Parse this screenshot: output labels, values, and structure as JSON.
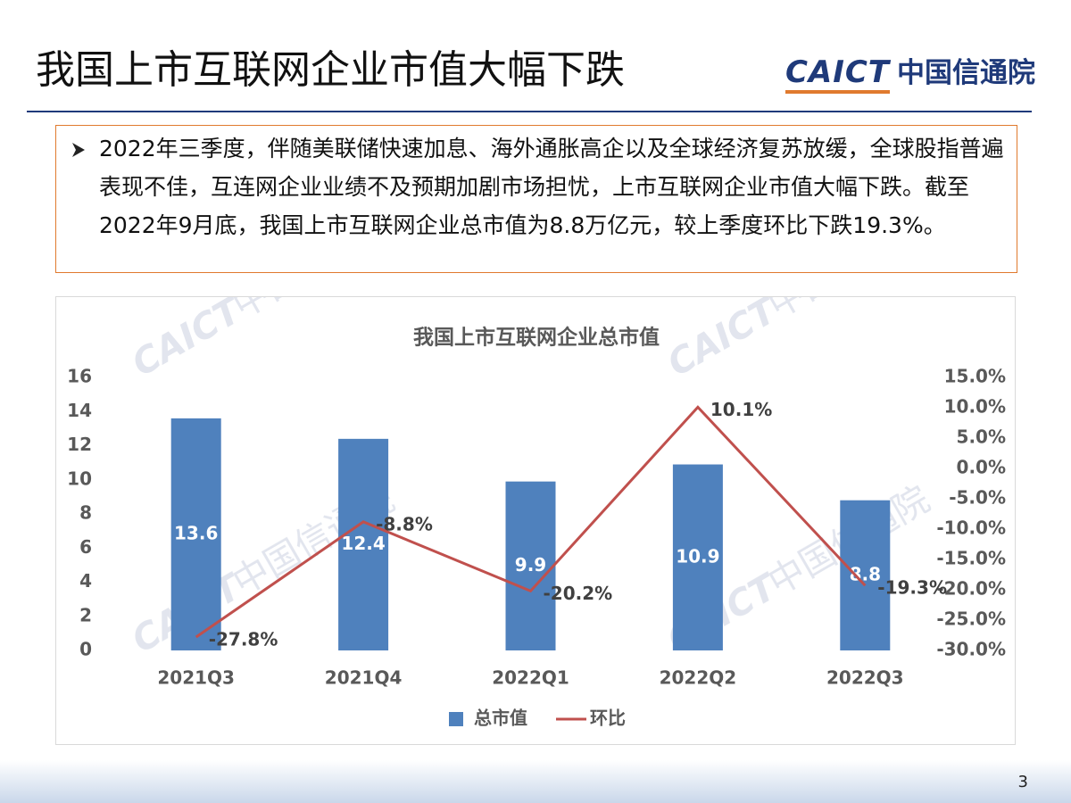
{
  "header": {
    "title": "我国上市互联网企业市值大幅下跌",
    "logo_latin": "CAICT",
    "logo_cn": "中国信通院"
  },
  "bullet": "2022年三季度，伴随美联储快速加息、海外通胀高企以及全球经济复苏放缓，全球股指普遍表现不佳，互连网企业业绩不及预期加剧市场担忧，上市互联网企业市值大幅下跌。截至2022年9月底，我国上市互联网企业总市值为8.8万亿元，较上季度环比下跌19.3%。",
  "chart_data": {
    "type": "bar",
    "title": "我国上市互联网企业总市值",
    "categories": [
      "2021Q3",
      "2021Q4",
      "2022Q1",
      "2022Q2",
      "2022Q3"
    ],
    "series": [
      {
        "name": "总市值",
        "type": "bar",
        "color": "#4f81bd",
        "values": [
          13.6,
          12.4,
          9.9,
          10.9,
          8.8
        ]
      },
      {
        "name": "环比",
        "type": "line",
        "axis": "y2",
        "color": "#c0504d",
        "values": [
          -27.8,
          -8.8,
          -20.2,
          10.1,
          -19.3
        ],
        "value_labels": [
          "-27.8%",
          "-8.8%",
          "-20.2%",
          "10.1%",
          "-19.3%"
        ]
      }
    ],
    "ylim": [
      0,
      16
    ],
    "yticks": [
      0,
      2,
      4,
      6,
      8,
      10,
      12,
      14,
      16
    ],
    "y2lim": [
      -30,
      15
    ],
    "y2ticks": [
      {
        "value": -30,
        "label": "-30.0%"
      },
      {
        "value": -25,
        "label": "-25.0%"
      },
      {
        "value": -20,
        "label": "-20.0%"
      },
      {
        "value": -15,
        "label": "-15.0%"
      },
      {
        "value": -10,
        "label": "-10.0%"
      },
      {
        "value": -5,
        "label": "-5.0%"
      },
      {
        "value": 0,
        "label": "0.0%"
      },
      {
        "value": 5,
        "label": "5.0%"
      },
      {
        "value": 10,
        "label": "10.0%"
      },
      {
        "value": 15,
        "label": "15.0%"
      }
    ],
    "legend": "bottom",
    "grid": false
  },
  "page_number": 3
}
